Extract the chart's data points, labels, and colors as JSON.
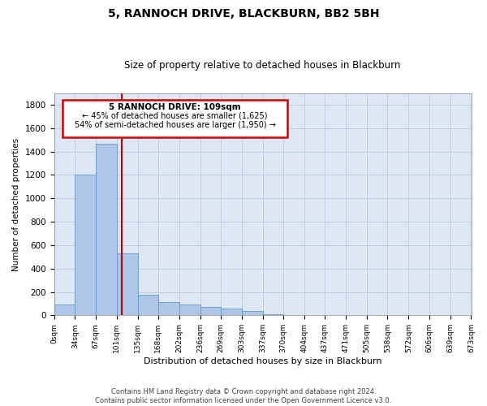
{
  "title": "5, RANNOCH DRIVE, BLACKBURN, BB2 5BH",
  "subtitle": "Size of property relative to detached houses in Blackburn",
  "xlabel": "Distribution of detached houses by size in Blackburn",
  "ylabel": "Number of detached properties",
  "annotation_line1": "5 RANNOCH DRIVE: 109sqm",
  "annotation_line2": "← 45% of detached houses are smaller (1,625)",
  "annotation_line3": "54% of semi-detached houses are larger (1,950) →",
  "property_size": 109,
  "bin_edges": [
    0,
    34,
    67,
    101,
    135,
    168,
    202,
    236,
    269,
    303,
    337,
    370,
    404,
    437,
    471,
    505,
    538,
    572,
    606,
    639,
    673
  ],
  "bar_heights": [
    90,
    1200,
    1470,
    530,
    175,
    110,
    90,
    75,
    55,
    40,
    10,
    0,
    0,
    0,
    0,
    0,
    0,
    0,
    0,
    0
  ],
  "bar_color": "#aec6e8",
  "bar_edge_color": "#6699cc",
  "vline_color": "#cc0000",
  "annotation_box_color": "#cc0000",
  "grid_color": "#bbccdd",
  "bg_color": "#dde8f4",
  "ylim": [
    0,
    1900
  ],
  "yticks": [
    0,
    200,
    400,
    600,
    800,
    1000,
    1200,
    1400,
    1600,
    1800
  ],
  "footer_line1": "Contains HM Land Registry data © Crown copyright and database right 2024.",
  "footer_line2": "Contains public sector information licensed under the Open Government Licence v3.0."
}
